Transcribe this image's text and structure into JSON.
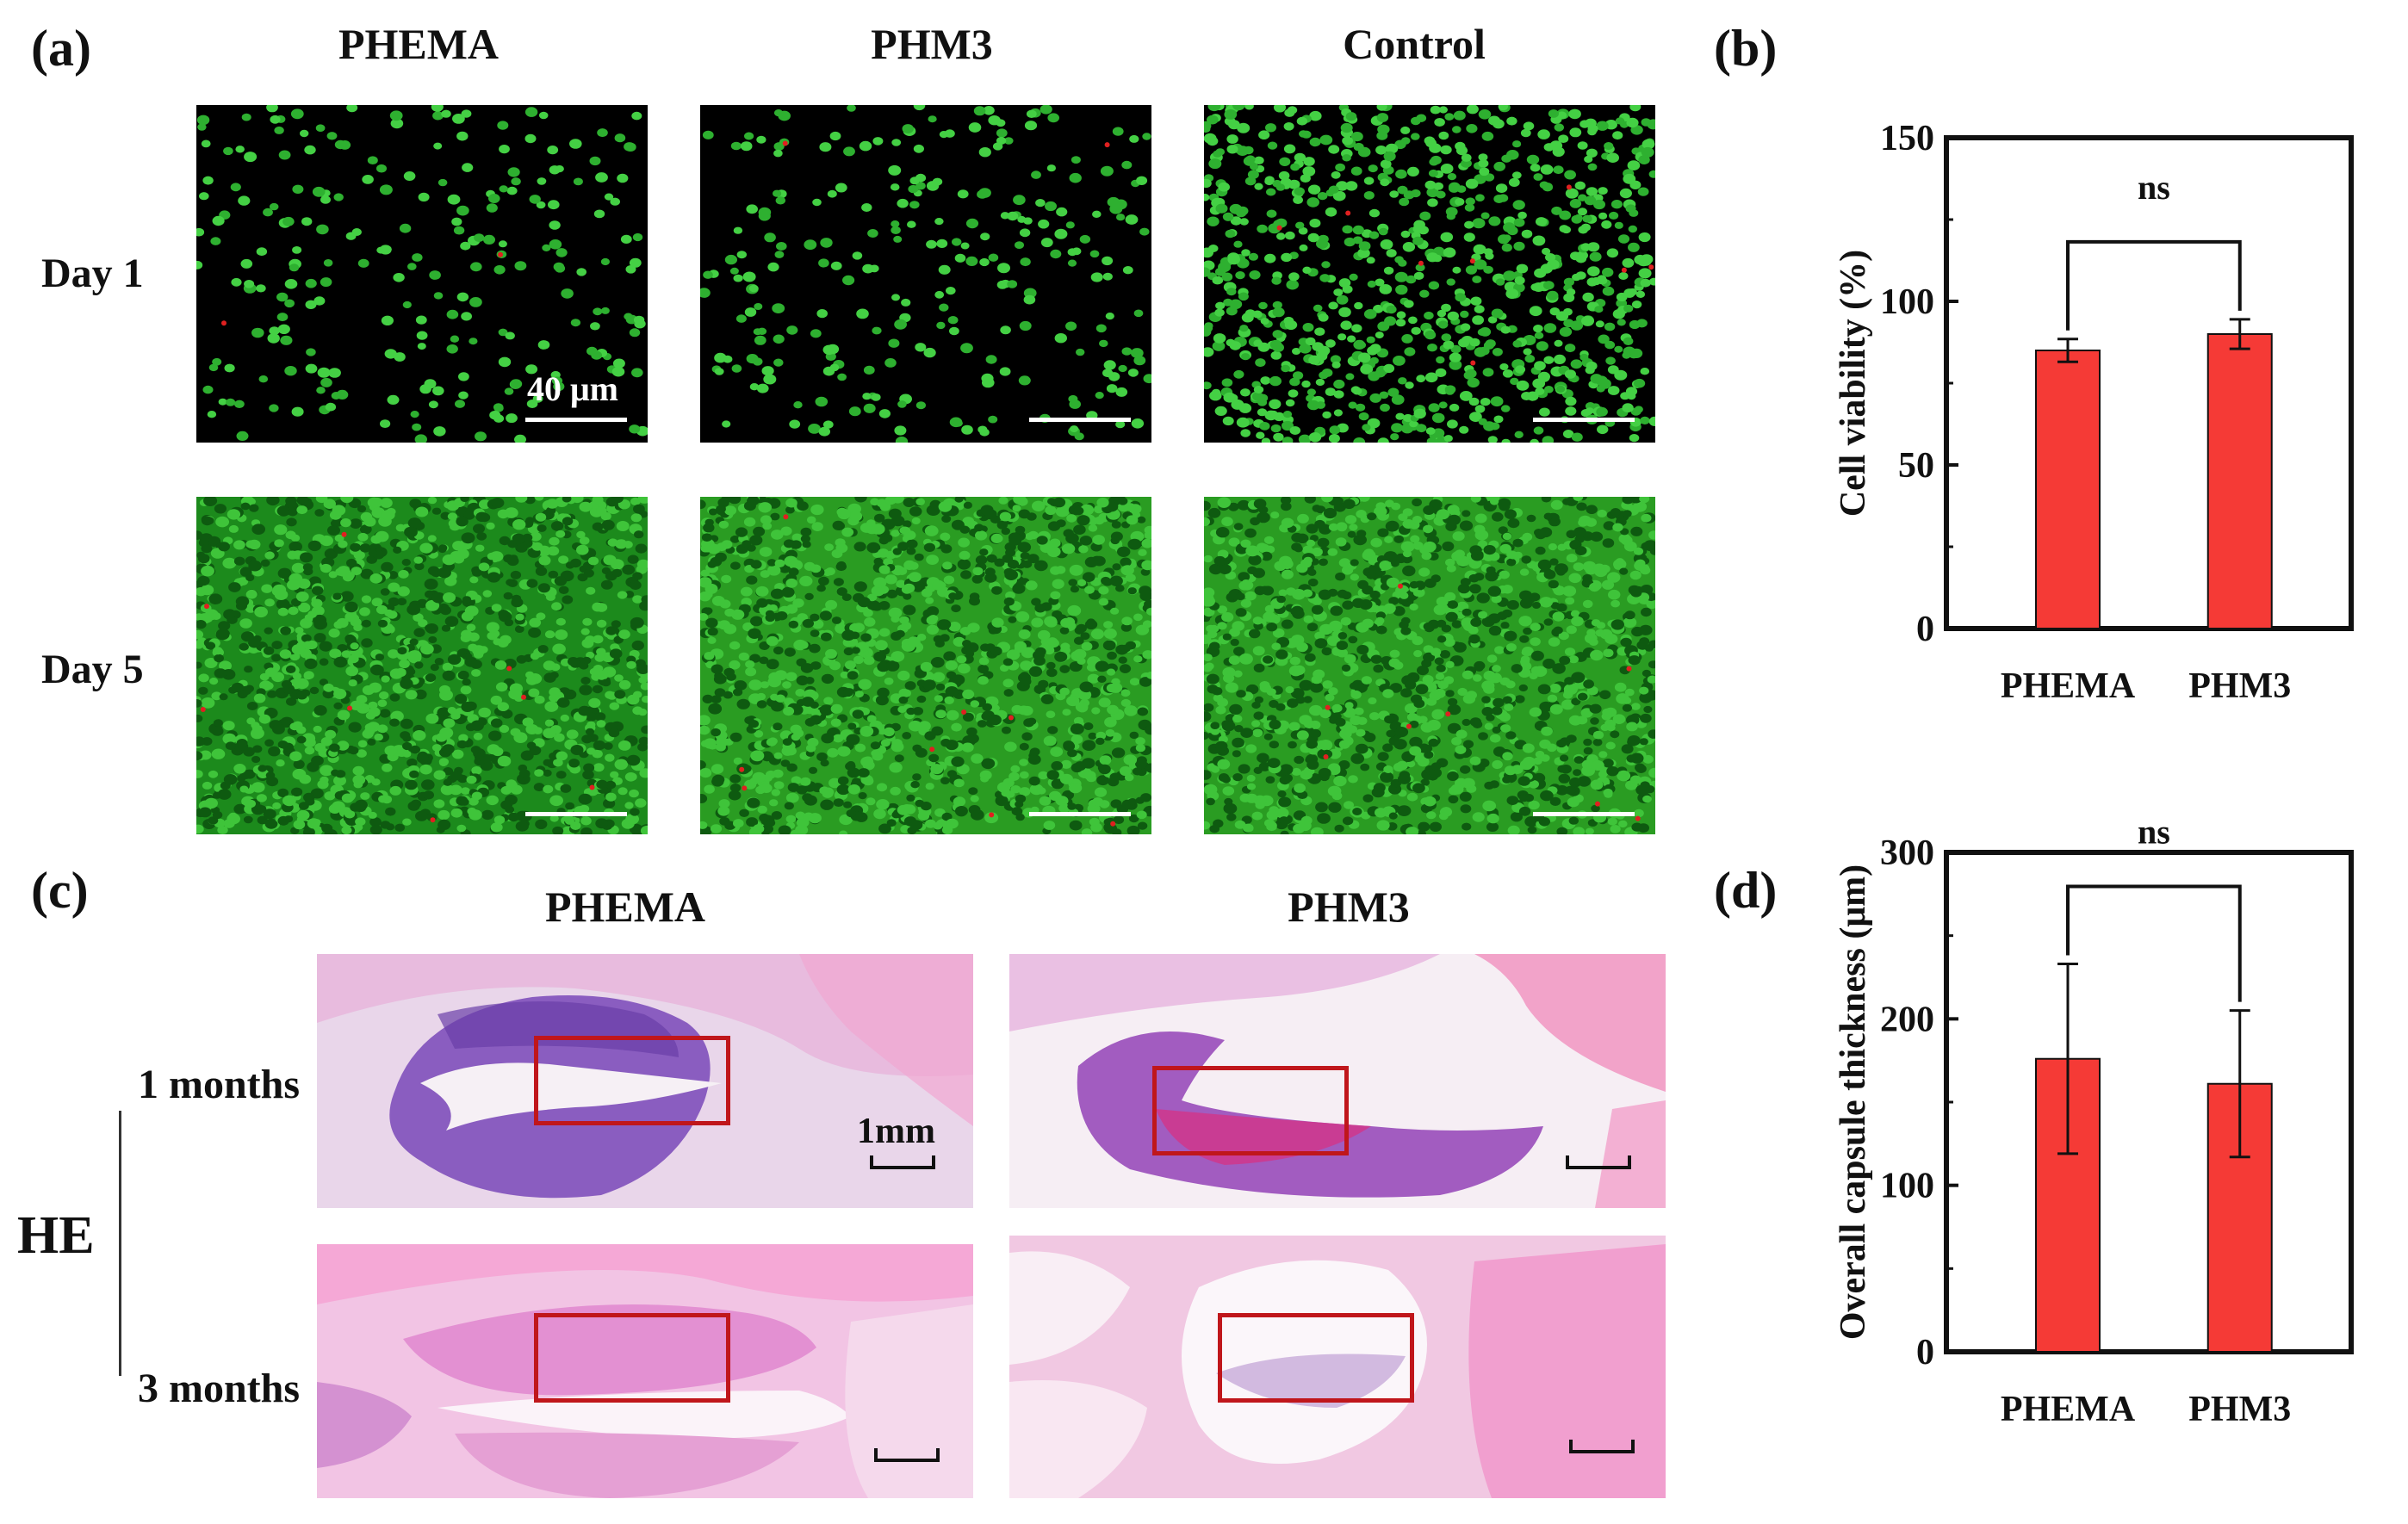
{
  "panel_a": {
    "letter": "(a)",
    "columns": [
      "PHEMA",
      "PHM3",
      "Control"
    ],
    "rows": [
      "Day 1",
      "Day 5"
    ],
    "scale_label": "40 μm"
  },
  "panel_b": {
    "letter": "(b)"
  },
  "panel_c": {
    "letter": "(c)",
    "columns": [
      "PHEMA",
      "PHM3"
    ],
    "rows": [
      "1 months",
      "3 months"
    ],
    "stain": "HE",
    "scale_label": "1mm"
  },
  "panel_d": {
    "letter": "(d)"
  },
  "chart_data": [
    {
      "panel": "(b)",
      "type": "bar",
      "categories": [
        "PHEMA",
        "PHM3"
      ],
      "values": [
        85,
        90
      ],
      "errors": [
        3.5,
        4.5
      ],
      "ylabel": "Cell viability (%)",
      "ylim": [
        0,
        150
      ],
      "yticks": [
        "0",
        "50",
        "100",
        "150"
      ],
      "annotation": "ns",
      "bar_color": "#f53a36"
    },
    {
      "panel": "(d)",
      "type": "bar",
      "categories": [
        "PHEMA",
        "PHM3"
      ],
      "values": [
        176,
        161
      ],
      "errors": [
        57,
        44
      ],
      "ylabel": "Overall capsule thickness (μm)",
      "ylim": [
        0,
        300
      ],
      "yticks": [
        "0",
        "100",
        "200",
        "300"
      ],
      "annotation": "ns",
      "bar_color": "#f53a36"
    }
  ]
}
